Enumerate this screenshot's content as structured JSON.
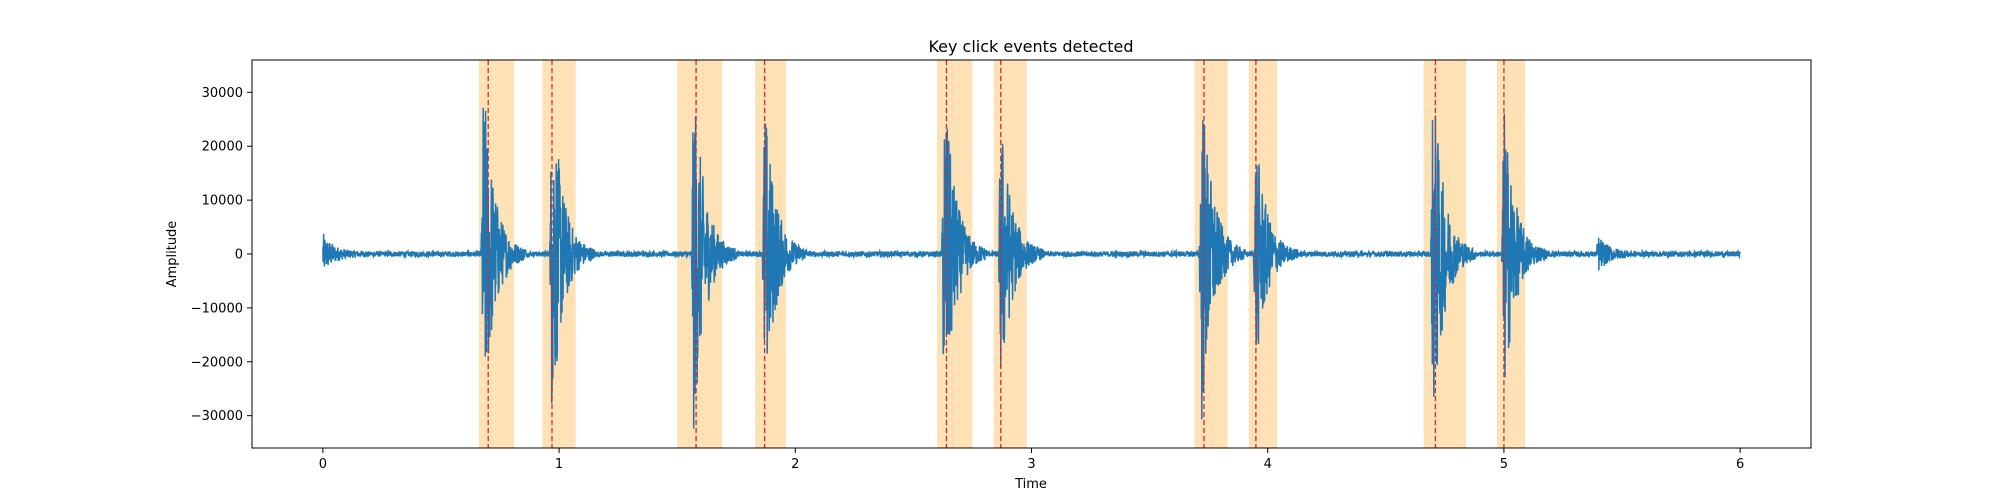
{
  "chart_data": {
    "type": "line",
    "title": "Key click events detected",
    "xlabel": "Time",
    "ylabel": "Amplitude",
    "xlim": [
      -0.3,
      6.3
    ],
    "ylim": [
      -36000,
      36000
    ],
    "x_ticks": [
      0,
      1,
      2,
      3,
      4,
      5,
      6
    ],
    "y_ticks": [
      -30000,
      -20000,
      -10000,
      0,
      10000,
      20000,
      30000
    ],
    "grid": false,
    "legend": "none",
    "series": [
      {
        "color": "#1f77b4",
        "duration": 6.0,
        "baseline_noise": 500,
        "bursts": [
          {
            "t": 0.0,
            "peak": 3500
          },
          {
            "t": 0.68,
            "peak": 33000
          },
          {
            "t": 0.97,
            "peak": 32000
          },
          {
            "t": 1.57,
            "peak": 33500
          },
          {
            "t": 1.87,
            "peak": 29000
          },
          {
            "t": 2.63,
            "peak": 33000
          },
          {
            "t": 2.87,
            "peak": 26000
          },
          {
            "t": 3.72,
            "peak": 33000
          },
          {
            "t": 3.95,
            "peak": 22000
          },
          {
            "t": 4.7,
            "peak": 33000
          },
          {
            "t": 5.0,
            "peak": 28000
          },
          {
            "t": 5.4,
            "peak": 3000
          }
        ]
      }
    ],
    "event_markers": {
      "line_color": "#d62728",
      "span_color": "#ffc97a",
      "events": [
        {
          "t": 0.7,
          "start": 0.66,
          "end": 0.81
        },
        {
          "t": 0.97,
          "start": 0.93,
          "end": 1.07
        },
        {
          "t": 1.58,
          "start": 1.5,
          "end": 1.69
        },
        {
          "t": 1.87,
          "start": 1.83,
          "end": 1.96
        },
        {
          "t": 2.64,
          "start": 2.6,
          "end": 2.75
        },
        {
          "t": 2.87,
          "start": 2.84,
          "end": 2.98
        },
        {
          "t": 3.73,
          "start": 3.69,
          "end": 3.83
        },
        {
          "t": 3.95,
          "start": 3.92,
          "end": 4.04
        },
        {
          "t": 4.71,
          "start": 4.66,
          "end": 4.84
        },
        {
          "t": 5.0,
          "start": 4.97,
          "end": 5.09
        }
      ]
    }
  }
}
